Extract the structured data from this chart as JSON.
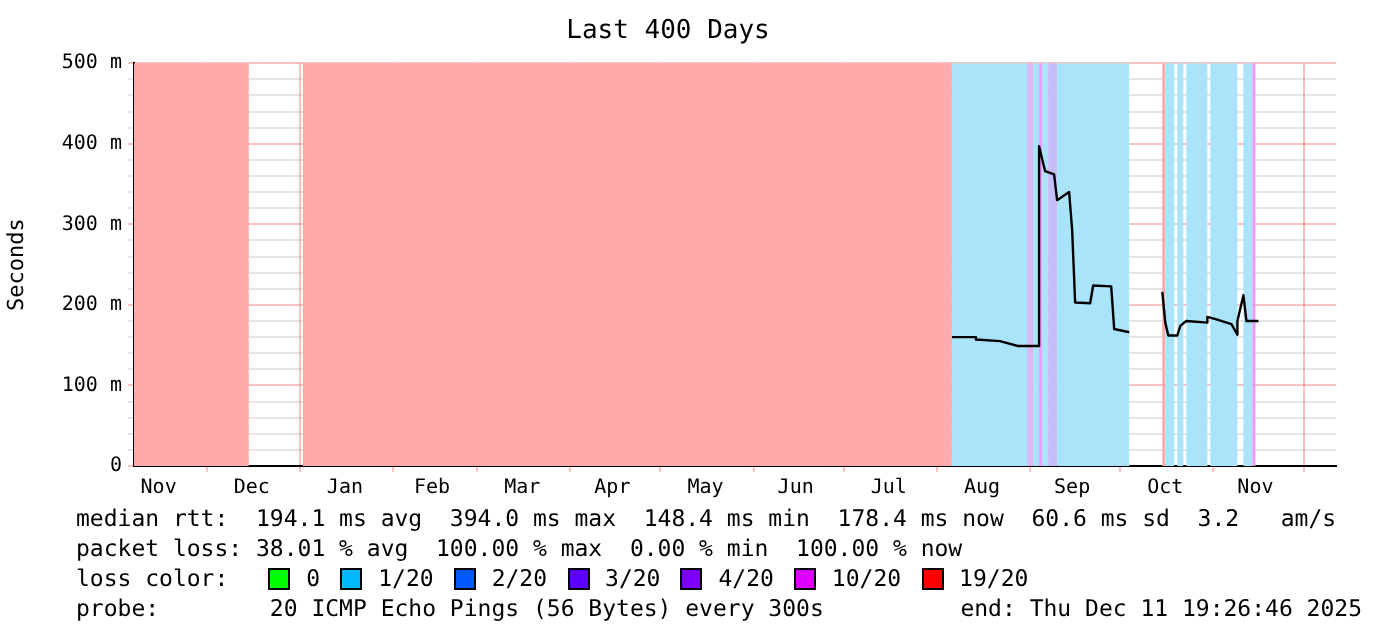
{
  "chart_data": {
    "type": "line",
    "title": "Last 400 Days",
    "ylabel": "Seconds",
    "xlim": [
      "2024-11-06T19:26",
      "2025-12-11T19:26"
    ],
    "xticks": [
      {
        "value": "2024-11-15",
        "label": "Nov"
      },
      {
        "value": "2024-12-01",
        "label": null
      },
      {
        "value": "2024-12-16",
        "label": "Dec"
      },
      {
        "value": "2025-01-01",
        "label": null
      },
      {
        "value": "2025-01-16",
        "label": "Jan"
      },
      {
        "value": "2025-02-01",
        "label": null
      },
      {
        "value": "2025-02-14",
        "label": "Feb"
      },
      {
        "value": "2025-03-01",
        "label": null
      },
      {
        "value": "2025-03-16",
        "label": "Mar"
      },
      {
        "value": "2025-04-01",
        "label": null
      },
      {
        "value": "2025-04-15",
        "label": "Apr"
      },
      {
        "value": "2025-05-01",
        "label": null
      },
      {
        "value": "2025-05-16",
        "label": "May"
      },
      {
        "value": "2025-06-01",
        "label": null
      },
      {
        "value": "2025-06-15",
        "label": "Jun"
      },
      {
        "value": "2025-07-01",
        "label": null
      },
      {
        "value": "2025-07-16",
        "label": "Jul"
      },
      {
        "value": "2025-08-01",
        "label": null
      },
      {
        "value": "2025-08-16",
        "label": "Aug"
      },
      {
        "value": "2025-09-01",
        "label": null
      },
      {
        "value": "2025-09-15",
        "label": "Sep"
      },
      {
        "value": "2025-10-01",
        "label": null
      },
      {
        "value": "2025-10-16",
        "label": "Oct"
      },
      {
        "value": "2025-11-01",
        "label": null
      },
      {
        "value": "2025-11-15",
        "label": "Nov"
      },
      {
        "value": "2025-12-01",
        "label": null
      }
    ],
    "ylim": [
      0,
      500
    ],
    "yticks": [
      0,
      {
        "value": 20,
        "label": null
      },
      {
        "value": 40,
        "label": null
      },
      {
        "value": 60,
        "label": null
      },
      {
        "value": 80,
        "label": null
      },
      {
        "value": 100,
        "label": "100 m"
      },
      {
        "value": 120,
        "label": null
      },
      {
        "value": 140,
        "label": null
      },
      {
        "value": 160,
        "label": null
      },
      {
        "value": 180,
        "label": null
      },
      {
        "value": 200,
        "label": "200 m"
      },
      {
        "value": 220,
        "label": null
      },
      {
        "value": 240,
        "label": null
      },
      {
        "value": 260,
        "label": null
      },
      {
        "value": 280,
        "label": null
      },
      {
        "value": 300,
        "label": "300 m"
      },
      {
        "value": 320,
        "label": null
      },
      {
        "value": 340,
        "label": null
      },
      {
        "value": 360,
        "label": null
      },
      {
        "value": 380,
        "label": null
      },
      {
        "value": 400,
        "label": "400 m"
      },
      {
        "value": 420,
        "label": null
      },
      {
        "value": 440,
        "label": null
      },
      {
        "value": 460,
        "label": null
      },
      {
        "value": 480,
        "label": null
      },
      {
        "value": 500,
        "label": "500 m"
      }
    ],
    "grid": true,
    "legend": "bottom left",
    "legend_title": "loss color:",
    "series": [
      {
        "color": "#000000",
        "x": [
          "2025-08-06",
          "2025-08-14",
          "2025-08-14",
          "2025-08-22",
          "2025-08-28",
          "2025-09-04",
          "2025-09-04",
          "2025-09-06",
          "2025-09-09",
          "2025-09-10",
          "2025-09-14",
          "2025-09-15",
          "2025-09-16",
          "2025-09-21",
          "2025-09-22",
          "2025-09-28",
          "2025-09-29",
          "2025-10-04",
          "2025-10-09",
          "2025-10-15",
          "2025-10-16",
          "2025-10-17",
          "2025-10-20",
          "2025-10-21",
          "2025-10-23",
          "2025-10-30",
          "2025-10-30",
          "2025-11-02",
          "2025-11-07",
          "2025-11-09",
          "2025-11-09",
          "2025-11-11",
          "2025-11-12",
          "2025-11-16"
        ],
        "values": [
          160,
          160,
          157,
          155,
          149,
          149,
          397,
          366,
          362,
          330,
          340,
          293,
          203,
          202,
          224,
          223,
          170,
          166,
          null,
          216,
          178,
          162,
          162,
          174,
          180,
          178,
          185,
          182,
          176,
          163,
          180,
          212,
          180,
          180
        ]
      },
      {
        "name": "0",
        "color": "#00ff00"
      },
      {
        "name": "1/20",
        "color": "#00b8ff"
      },
      {
        "name": "2/20",
        "color": "#0059ff"
      },
      {
        "name": "3/20",
        "color": "#5e00ff"
      },
      {
        "name": "4/20",
        "color": "#7e00ff"
      },
      {
        "name": "10/20",
        "color": "#dd00ff"
      },
      {
        "name": "19/20",
        "color": "#ff0000"
      }
    ],
    "bands": [
      {
        "axis": "x",
        "from": "2024-11-06T19:26",
        "to": "2024-12-15",
        "color": "#ffaaaa"
      },
      {
        "axis": "x",
        "from": "2025-01-02",
        "to": "2025-08-06",
        "color": "#ffaaaa"
      },
      {
        "axis": "x",
        "from": "2025-08-06",
        "to": "2025-08-31",
        "color": "#aae4fa"
      },
      {
        "axis": "x",
        "from": "2025-08-31",
        "to": "2025-09-02",
        "color": "#d8b8f0"
      },
      {
        "axis": "x",
        "from": "2025-09-02",
        "to": "2025-09-04",
        "color": "#aae4fa"
      },
      {
        "axis": "x",
        "from": "2025-09-04",
        "to": "2025-09-05",
        "color": "#ee99ff"
      },
      {
        "axis": "x",
        "from": "2025-09-05",
        "to": "2025-09-07",
        "color": "#aae4fa"
      },
      {
        "axis": "x",
        "from": "2025-09-07",
        "to": "2025-09-10",
        "color": "#c8bcf8"
      },
      {
        "axis": "x",
        "from": "2025-09-10",
        "to": "2025-10-04",
        "color": "#aae4fa"
      },
      {
        "axis": "x",
        "from": "2025-10-15",
        "to": "2025-10-16",
        "color": "#ffaaaa"
      },
      {
        "axis": "x",
        "from": "2025-10-16",
        "to": "2025-10-19",
        "color": "#aae4fa"
      },
      {
        "axis": "x",
        "from": "2025-10-20",
        "to": "2025-10-22",
        "color": "#aae4fa"
      },
      {
        "axis": "x",
        "from": "2025-10-23",
        "to": "2025-10-30",
        "color": "#aae4fa"
      },
      {
        "axis": "x",
        "from": "2025-10-31",
        "to": "2025-11-09",
        "color": "#aae4fa"
      },
      {
        "axis": "x",
        "from": "2025-11-11",
        "to": "2025-11-14",
        "color": "#aae4fa"
      },
      {
        "axis": "x",
        "from": "2025-11-14",
        "to": "2025-11-15",
        "color": "#ee99ff"
      }
    ],
    "annotations": [
      "median rtt:  194.1 ms avg  394.0 ms max  148.4 ms min  178.4 ms now  60.6 ms sd  3.2   am/s",
      "packet loss: 38.01 % avg  100.00 % max  0.00 % min  100.00 % now",
      "probe:        20 ICMP Echo Pings (56 Bytes) every 300s",
      "end: Thu Dec 11 19:26:46 2025"
    ]
  }
}
